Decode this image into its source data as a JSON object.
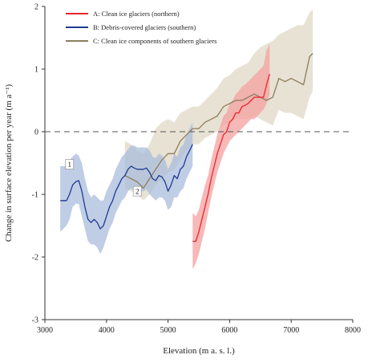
{
  "chart_data": {
    "type": "line",
    "title": "",
    "xlabel": "Elevation (m a. s. l.)",
    "ylabel": "Change in surface elevation per year (m a⁻¹)",
    "xlim": [
      3000,
      8000
    ],
    "ylim": [
      -3,
      2
    ],
    "x_ticks": [
      3000,
      4000,
      5000,
      6000,
      7000,
      8000
    ],
    "y_ticks": [
      -3,
      -2,
      -1,
      0,
      1,
      2
    ],
    "x_tick_labels": [
      "3000",
      "4000",
      "5000",
      "6000",
      "7000",
      "8000"
    ],
    "y_tick_labels": [
      "-3",
      "-2",
      "-1",
      "0",
      "1",
      "2"
    ],
    "zero_line": {
      "y": 0,
      "style": "dashed",
      "color": "#555555"
    },
    "grid": false,
    "legend_position": "top-left",
    "series": [
      {
        "key": "A",
        "name": "A: Clean ice glaciers (northern)",
        "line_color": "#e8252d",
        "band_color": "#f4a0a0",
        "x": [
          5400,
          5450,
          5500,
          5550,
          5600,
          5650,
          5700,
          5750,
          5800,
          5850,
          5900,
          5950,
          6000,
          6050,
          6100,
          6150,
          6200,
          6250,
          6300,
          6350,
          6400,
          6450,
          6500,
          6550,
          6600,
          6650
        ],
        "y": [
          -1.75,
          -1.75,
          -1.6,
          -1.4,
          -1.2,
          -1.0,
          -0.75,
          -0.55,
          -0.35,
          -0.2,
          -0.05,
          0.0,
          0.15,
          0.2,
          0.3,
          0.3,
          0.4,
          0.42,
          0.45,
          0.5,
          0.55,
          0.55,
          0.55,
          0.55,
          0.75,
          0.92
        ],
        "lower": [
          -2.2,
          -2.1,
          -1.95,
          -1.75,
          -1.55,
          -1.3,
          -1.05,
          -0.85,
          -0.65,
          -0.5,
          -0.35,
          -0.25,
          -0.15,
          -0.1,
          -0.05,
          0.0,
          0.05,
          0.1,
          0.15,
          0.2,
          0.2,
          0.25,
          0.3,
          0.35,
          0.45,
          0.6
        ],
        "upper": [
          -1.3,
          -1.35,
          -1.25,
          -1.05,
          -0.85,
          -0.7,
          -0.45,
          -0.25,
          -0.05,
          0.1,
          0.25,
          0.3,
          0.45,
          0.5,
          0.6,
          0.65,
          0.72,
          0.75,
          0.8,
          0.85,
          0.9,
          0.95,
          1.0,
          1.05,
          1.3,
          1.4
        ]
      },
      {
        "key": "B",
        "name": "B: Debris-covered glaciers (southern)",
        "line_color": "#1f3a93",
        "band_color": "#a9bcdc",
        "x": [
          3250,
          3300,
          3350,
          3400,
          3450,
          3500,
          3550,
          3600,
          3650,
          3700,
          3750,
          3800,
          3850,
          3900,
          3950,
          4000,
          4050,
          4100,
          4150,
          4200,
          4250,
          4300,
          4350,
          4400,
          4450,
          4500,
          4550,
          4600,
          4650,
          4700,
          4750,
          4800,
          4850,
          4900,
          4950,
          5000,
          5050,
          5100,
          5150,
          5200,
          5250,
          5300,
          5350,
          5400
        ],
        "y": [
          -1.1,
          -1.1,
          -1.1,
          -1.0,
          -0.85,
          -0.8,
          -0.78,
          -0.95,
          -1.2,
          -1.4,
          -1.45,
          -1.4,
          -1.45,
          -1.55,
          -1.5,
          -1.35,
          -1.2,
          -1.1,
          -0.95,
          -0.85,
          -0.75,
          -0.7,
          -0.6,
          -0.55,
          -0.58,
          -0.6,
          -0.6,
          -0.6,
          -0.58,
          -0.65,
          -0.75,
          -0.78,
          -0.7,
          -0.72,
          -0.8,
          -0.95,
          -0.85,
          -0.7,
          -0.75,
          -0.6,
          -0.55,
          -0.4,
          -0.3,
          -0.2
        ],
        "lower": [
          -1.6,
          -1.55,
          -1.5,
          -1.4,
          -1.2,
          -1.15,
          -1.15,
          -1.35,
          -1.55,
          -1.75,
          -1.8,
          -1.8,
          -1.85,
          -1.95,
          -1.85,
          -1.7,
          -1.55,
          -1.45,
          -1.3,
          -1.2,
          -1.1,
          -1.05,
          -0.95,
          -0.9,
          -0.95,
          -0.95,
          -0.95,
          -0.95,
          -0.92,
          -1.0,
          -1.05,
          -1.1,
          -1.05,
          -1.05,
          -1.1,
          -1.25,
          -1.2,
          -1.05,
          -1.05,
          -0.95,
          -0.9,
          -0.75,
          -0.65,
          -0.55
        ],
        "upper": [
          -0.55,
          -0.55,
          -0.55,
          -0.45,
          -0.4,
          -0.35,
          -0.38,
          -0.5,
          -0.75,
          -0.95,
          -1.05,
          -1.0,
          -1.05,
          -1.1,
          -1.1,
          -0.95,
          -0.85,
          -0.75,
          -0.6,
          -0.5,
          -0.4,
          -0.35,
          -0.28,
          -0.22,
          -0.22,
          -0.25,
          -0.25,
          -0.25,
          -0.25,
          -0.3,
          -0.4,
          -0.42,
          -0.35,
          -0.38,
          -0.45,
          -0.6,
          -0.5,
          -0.35,
          -0.4,
          -0.25,
          -0.2,
          -0.05,
          0.05,
          0.15
        ]
      },
      {
        "key": "C",
        "name": "C: Clean ice components of southern glaciers",
        "line_color": "#8c7d5c",
        "band_color": "#e0d8c6",
        "x": [
          4300,
          4400,
          4500,
          4600,
          4700,
          4800,
          4900,
          5000,
          5100,
          5200,
          5300,
          5400,
          5500,
          5600,
          5700,
          5800,
          5900,
          6000,
          6100,
          6200,
          6300,
          6400,
          6500,
          6600,
          6700,
          6800,
          6900,
          7000,
          7100,
          7200,
          7300,
          7350
        ],
        "y": [
          -0.7,
          -0.75,
          -0.8,
          -0.9,
          -0.75,
          -0.6,
          -0.45,
          -0.35,
          -0.35,
          -0.15,
          -0.05,
          0.05,
          0.05,
          0.15,
          0.2,
          0.25,
          0.4,
          0.45,
          0.5,
          0.5,
          0.55,
          0.6,
          0.55,
          0.5,
          0.55,
          0.85,
          0.8,
          0.85,
          0.8,
          0.75,
          1.2,
          1.25
        ],
        "lower": [
          -0.9,
          -0.95,
          -1.0,
          -1.1,
          -1.0,
          -0.85,
          -0.75,
          -0.65,
          -0.6,
          -0.45,
          -0.3,
          -0.2,
          -0.2,
          -0.1,
          -0.05,
          0.0,
          0.1,
          0.15,
          0.2,
          0.2,
          0.2,
          0.25,
          0.2,
          0.15,
          0.1,
          0.35,
          0.3,
          0.3,
          0.25,
          0.2,
          0.55,
          0.65
        ],
        "upper": [
          -0.15,
          -0.2,
          -0.3,
          -0.35,
          -0.2,
          0.05,
          0.15,
          0.2,
          0.15,
          0.3,
          0.35,
          0.4,
          0.4,
          0.5,
          0.6,
          0.7,
          0.85,
          0.9,
          1.0,
          1.05,
          1.1,
          1.25,
          1.35,
          1.4,
          1.45,
          1.55,
          1.6,
          1.65,
          1.7,
          1.7,
          1.9,
          1.95
        ]
      }
    ],
    "annotations": [
      {
        "label": "1",
        "x": 3400,
        "y": -0.52
      },
      {
        "label": "2",
        "x": 4500,
        "y": -0.95
      }
    ]
  }
}
